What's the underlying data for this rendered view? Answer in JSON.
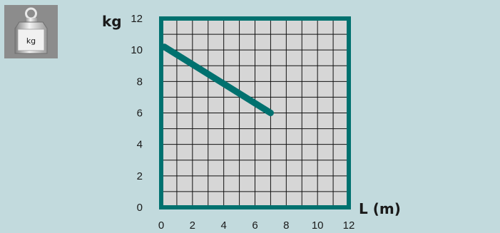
{
  "icon": {
    "name": "weight-icon",
    "label": "kg"
  },
  "colors": {
    "panel_background": "#c2dadd",
    "plot_background": "#d6d6d6",
    "grid_line": "#111111",
    "frame": "#00716f",
    "line": "#00716f"
  },
  "chart_data": {
    "type": "line",
    "title": "",
    "ylabel": "kg",
    "xlabel": "L (m)",
    "xlim": [
      0,
      12
    ],
    "ylim": [
      0,
      12
    ],
    "x_ticks": [
      0,
      2,
      4,
      6,
      8,
      10,
      12
    ],
    "y_ticks": [
      0,
      2,
      4,
      6,
      8,
      10,
      12
    ],
    "x_labels": [
      "0",
      "2",
      "4",
      "6",
      "8",
      "10",
      "12"
    ],
    "y_labels": [
      "0",
      "2",
      "4",
      "6",
      "8",
      "10",
      "12"
    ],
    "minor_grid_step": 1,
    "grid": true,
    "series": [
      {
        "x": [
          0.2,
          7
        ],
        "y": [
          10.2,
          6
        ]
      }
    ]
  }
}
